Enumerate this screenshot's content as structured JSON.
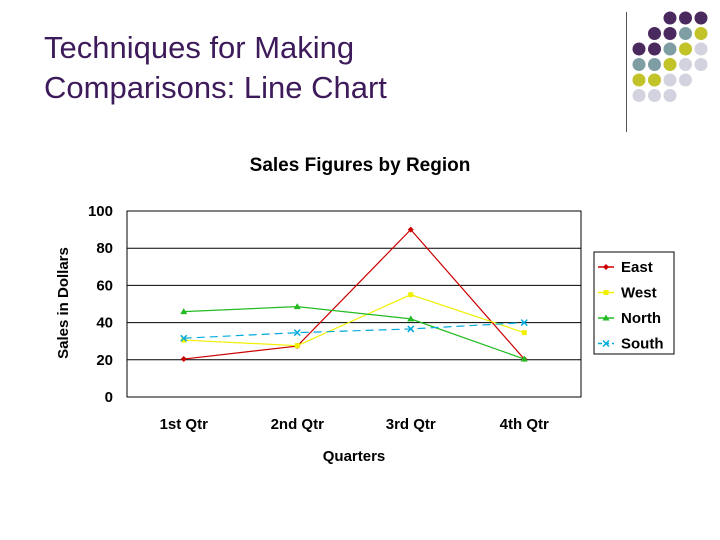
{
  "slide": {
    "title_line1": "Techniques for Making",
    "title_line2": "Comparisons: Line Chart"
  },
  "decor": {
    "dot_colors": [
      "#4a2a5e",
      "#7f9ea4",
      "#c2c229",
      "#d3d3e0"
    ]
  },
  "chart_data": {
    "type": "line",
    "title": "Sales Figures by Region",
    "xlabel": "Quarters",
    "ylabel": "Sales in Dollars",
    "categories": [
      "1st Qtr",
      "2nd Qtr",
      "3rd Qtr",
      "4th Qtr"
    ],
    "ylim": [
      0,
      100
    ],
    "yticks": [
      0,
      20,
      40,
      60,
      80,
      100
    ],
    "grid": true,
    "legend_position": "right",
    "series": [
      {
        "name": "East",
        "values": [
          20.4,
          27.4,
          90,
          20.4
        ],
        "color": "#cc0000",
        "marker": "diamond",
        "dash": "none"
      },
      {
        "name": "West",
        "values": [
          30.6,
          27.6,
          55,
          34.6
        ],
        "color": "#f0f000",
        "marker": "square",
        "dash": "none"
      },
      {
        "name": "North",
        "values": [
          45.9,
          48.6,
          42,
          20.4
        ],
        "color": "#22bb22",
        "marker": "triangle",
        "dash": "none"
      },
      {
        "name": "South",
        "values": [
          31.6,
          34.6,
          36.6,
          40
        ],
        "color": "#00aadd",
        "marker": "x",
        "dash": "8,5"
      }
    ]
  }
}
